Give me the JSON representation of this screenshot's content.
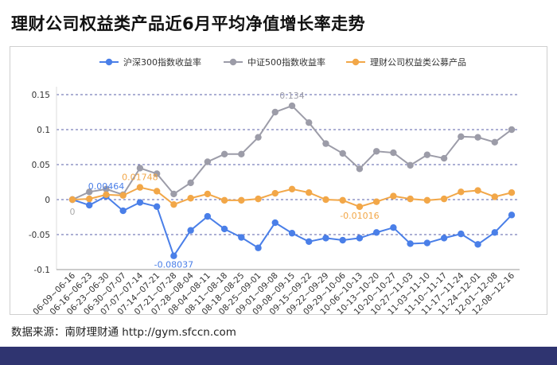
{
  "title": "理财公司权益类产品近6月平均净值增长率走势",
  "source": "数据来源：南财理财通 http://gym.sfccn.com",
  "chart_data": {
    "type": "line",
    "categories": [
      "06-09~06-16",
      "06-16~06-23",
      "06-23~06-30",
      "06-30~07-07",
      "07-07~07-14",
      "07-14~07-21",
      "07-21~07-28",
      "07-28~08-04",
      "08-04~08-11",
      "08-11~08-18",
      "08-18~08-25",
      "08-25~09-01",
      "09-01~09-08",
      "09-08~09-15",
      "09-15~09-22",
      "09-22~09-29",
      "09-29~10-06",
      "10-06~10-13",
      "10-13~10-20",
      "10-20~10-27",
      "10-27~11-03",
      "11-03~11-10",
      "11-10~11-17",
      "11-17~11-24",
      "11-24~12-01",
      "12-01~12-08",
      "12-08~12-16"
    ],
    "ylim": [
      -0.1,
      0.15
    ],
    "yticks": [
      "-0.1",
      "-0.05",
      "0",
      "0.05",
      "0.1",
      "0.15"
    ],
    "grid": true,
    "legend_position": "top",
    "series": [
      {
        "name": "沪深300指数收益率",
        "color": "#4a7fe8",
        "values": [
          0,
          -0.008,
          0.00464,
          -0.016,
          -0.004,
          -0.01,
          -0.08037,
          -0.044,
          -0.024,
          -0.042,
          -0.054,
          -0.069,
          -0.033,
          -0.048,
          -0.06,
          -0.055,
          -0.058,
          -0.055,
          -0.047,
          -0.04,
          -0.063,
          -0.062,
          -0.055,
          -0.049,
          -0.064,
          -0.047,
          -0.022
        ]
      },
      {
        "name": "中证500指数收益率",
        "color": "#9c9ca8",
        "values": [
          0,
          0.011,
          0.015,
          0.007,
          0.045,
          0.037,
          0.008,
          0.024,
          0.054,
          0.065,
          0.065,
          0.089,
          0.125,
          0.134,
          0.11,
          0.08,
          0.066,
          0.044,
          0.069,
          0.067,
          0.049,
          0.064,
          0.059,
          0.09,
          0.089,
          0.082,
          0.1
        ]
      },
      {
        "name": "理财公司权益类公募产品",
        "color": "#f2a748",
        "values": [
          0,
          0.001,
          0.007,
          0.006,
          0.01748,
          0.012,
          -0.007,
          0.002,
          0.008,
          -0.001,
          -0.001,
          0.001,
          0.009,
          0.015,
          0.01,
          0.0,
          -0.001,
          -0.01016,
          -0.003,
          0.005,
          0.001,
          -0.001,
          0.001,
          0.011,
          0.013,
          0.004,
          0.01
        ]
      }
    ],
    "annotations": [
      {
        "text": "0",
        "series": 0,
        "index": 0,
        "color": "#aaaaaa"
      },
      {
        "text": "0.00464",
        "series": 0,
        "index": 2,
        "color": "#4a7fe8"
      },
      {
        "text": "-0.08037",
        "series": 0,
        "index": 6,
        "color": "#4a7fe8"
      },
      {
        "text": "0.134",
        "series": 1,
        "index": 13,
        "color": "#9c9ca8"
      },
      {
        "text": "0.01748",
        "series": 2,
        "index": 4,
        "color": "#f2a748"
      },
      {
        "text": "-0.01016",
        "series": 2,
        "index": 17,
        "color": "#f2a748"
      }
    ]
  }
}
